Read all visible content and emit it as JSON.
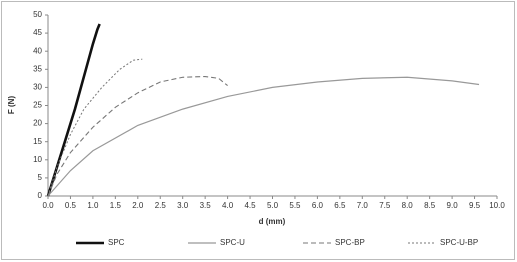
{
  "chart_data": {
    "type": "line",
    "xlabel": "d (mm)",
    "ylabel": "F (N)",
    "xlim": [
      0,
      10
    ],
    "ylim": [
      0,
      50
    ],
    "xticks": [
      {
        "value": 0,
        "label": "0.0"
      },
      0.5,
      {
        "value": 1,
        "label": "1.0"
      },
      1.5,
      {
        "value": 2,
        "label": "2.0"
      },
      2.5,
      {
        "value": 3,
        "label": "3.0"
      },
      3.5,
      {
        "value": 4,
        "label": "4.0"
      },
      4.5,
      {
        "value": 5,
        "label": "5.0"
      },
      5.5,
      {
        "value": 6,
        "label": "6.0"
      },
      6.5,
      {
        "value": 7,
        "label": "7.0"
      },
      7.5,
      {
        "value": 8,
        "label": "8.0"
      },
      8.5,
      {
        "value": 9,
        "label": "9.0"
      },
      9.5,
      {
        "value": 10,
        "label": "10.0"
      }
    ],
    "yticks": [
      0,
      5,
      10,
      15,
      20,
      25,
      30,
      35,
      40,
      45,
      50
    ],
    "grid": false,
    "legend": "bottom",
    "series": [
      {
        "name": "SPC",
        "color": "#111111",
        "x": [
          0,
          0.2,
          0.4,
          0.6,
          0.8,
          1.0,
          1.1,
          1.15
        ],
        "values": [
          0,
          8,
          16,
          24,
          33,
          42,
          46,
          47.5
        ]
      },
      {
        "name": "SPC-U",
        "color": "#999999",
        "x": [
          0,
          0.5,
          1.0,
          2.0,
          3.0,
          4.0,
          5.0,
          6.0,
          7.0,
          8.0,
          9.0,
          9.6
        ],
        "values": [
          0,
          7,
          12.5,
          19.5,
          24,
          27.5,
          30,
          31.5,
          32.5,
          32.8,
          31.8,
          30.8
        ]
      },
      {
        "name": "SPC-BP",
        "color": "#777777",
        "x": [
          0,
          0.2,
          0.5,
          1.0,
          1.5,
          2.0,
          2.5,
          3.0,
          3.5,
          3.8,
          4.0
        ],
        "values": [
          0,
          6,
          12,
          19,
          24.5,
          28.5,
          31.5,
          32.8,
          33,
          32.5,
          30.5
        ]
      },
      {
        "name": "SPC-U-BP",
        "color": "#777777",
        "x": [
          0,
          0.2,
          0.5,
          0.8,
          1.2,
          1.6,
          1.9,
          2.1
        ],
        "values": [
          0,
          8,
          17,
          24,
          30,
          35,
          37.5,
          37.8
        ]
      }
    ]
  }
}
